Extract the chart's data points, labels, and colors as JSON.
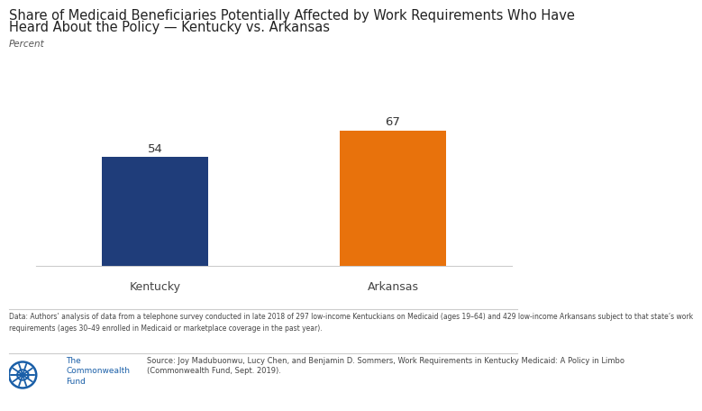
{
  "title_line1": "Share of Medicaid Beneficiaries Potentially Affected by Work Requirements Who Have",
  "title_line2": "Heard About the Policy — Kentucky vs. Arkansas",
  "ylabel": "Percent",
  "categories": [
    "Kentucky",
    "Arkansas"
  ],
  "values": [
    54,
    67
  ],
  "bar_colors": [
    "#1f3d7a",
    "#e8720c"
  ],
  "background_color": "#ffffff",
  "title_fontsize": 10.5,
  "tick_fontsize": 9,
  "value_fontsize": 9.5,
  "ylim": [
    0,
    80
  ],
  "footnote_data": "Data: Authors’ analysis of data from a telephone survey conducted in late 2018 of 297 low-income Kentuckians on Medicaid (ages 19–64) and 429 low-income Arkansans subject to that state’s work\nrequirements (ages 30–49 enrolled in Medicaid or marketplace coverage in the past year).",
  "source_text": "Source: Joy Madubuonwu, Lucy Chen, and Benjamin D. Sommers, Work Requirements in Kentucky Medicaid: A Policy in Limbo\n(Commonwealth Fund, Sept. 2019).",
  "org_name": "The\nCommonwealth\nFund"
}
